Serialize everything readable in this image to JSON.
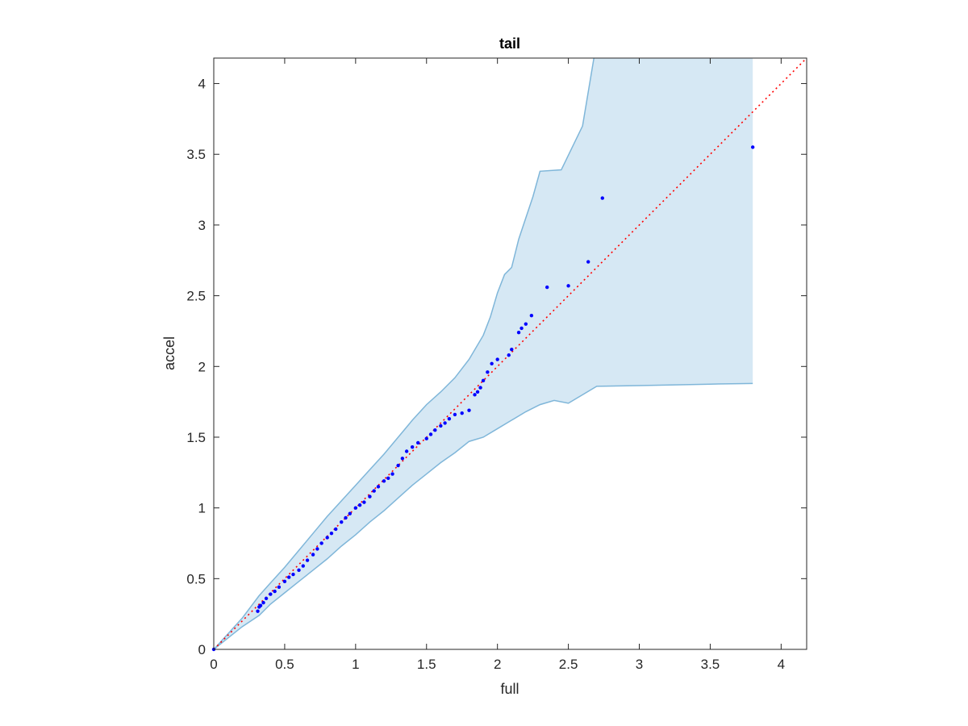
{
  "chart_data": {
    "type": "scatter",
    "title": "tail",
    "xlabel": "full",
    "ylabel": "accel",
    "xlim": [
      0,
      4.18
    ],
    "ylim": [
      0,
      4.18
    ],
    "xticks": [
      0,
      0.5,
      1,
      1.5,
      2,
      2.5,
      3,
      3.5,
      4
    ],
    "yticks": [
      0,
      0.5,
      1,
      1.5,
      2,
      2.5,
      3,
      3.5,
      4
    ],
    "xtick_labels": [
      "0",
      "0.5",
      "1",
      "1.5",
      "2",
      "2.5",
      "3",
      "3.5",
      "4"
    ],
    "ytick_labels": [
      "0",
      "0.5",
      "1",
      "1.5",
      "2",
      "2.5",
      "3",
      "3.5",
      "4"
    ],
    "grid": false,
    "colors": {
      "points": "#0000ff",
      "reference_line": "#ff0000",
      "band_fill": "#d6e8f4",
      "band_edge": "#7fb6d9",
      "axes": "#262626"
    },
    "reference_line": {
      "style": "dotted",
      "from": [
        0,
        0
      ],
      "to": [
        4.18,
        4.18
      ]
    },
    "confidence_band": {
      "upper": [
        [
          0,
          0
        ],
        [
          0.1,
          0.11
        ],
        [
          0.2,
          0.22
        ],
        [
          0.32,
          0.38
        ],
        [
          0.4,
          0.47
        ],
        [
          0.5,
          0.58
        ],
        [
          0.6,
          0.7
        ],
        [
          0.7,
          0.82
        ],
        [
          0.8,
          0.94
        ],
        [
          0.9,
          1.05
        ],
        [
          1.0,
          1.16
        ],
        [
          1.1,
          1.27
        ],
        [
          1.2,
          1.38
        ],
        [
          1.3,
          1.5
        ],
        [
          1.4,
          1.62
        ],
        [
          1.5,
          1.73
        ],
        [
          1.6,
          1.82
        ],
        [
          1.7,
          1.92
        ],
        [
          1.8,
          2.05
        ],
        [
          1.9,
          2.22
        ],
        [
          1.95,
          2.35
        ],
        [
          2.0,
          2.52
        ],
        [
          2.05,
          2.65
        ],
        [
          2.1,
          2.7
        ],
        [
          2.15,
          2.9
        ],
        [
          2.2,
          3.05
        ],
        [
          2.25,
          3.2
        ],
        [
          2.3,
          3.38
        ],
        [
          2.45,
          3.39
        ],
        [
          2.6,
          3.7
        ],
        [
          2.68,
          4.18
        ]
      ],
      "lower": [
        [
          0,
          0
        ],
        [
          0.1,
          0.08
        ],
        [
          0.2,
          0.16
        ],
        [
          0.32,
          0.24
        ],
        [
          0.4,
          0.32
        ],
        [
          0.5,
          0.4
        ],
        [
          0.6,
          0.48
        ],
        [
          0.7,
          0.56
        ],
        [
          0.8,
          0.64
        ],
        [
          0.9,
          0.73
        ],
        [
          1.0,
          0.81
        ],
        [
          1.1,
          0.9
        ],
        [
          1.2,
          0.98
        ],
        [
          1.3,
          1.07
        ],
        [
          1.4,
          1.16
        ],
        [
          1.5,
          1.24
        ],
        [
          1.6,
          1.32
        ],
        [
          1.7,
          1.39
        ],
        [
          1.8,
          1.47
        ],
        [
          1.9,
          1.5
        ],
        [
          2.0,
          1.56
        ],
        [
          2.1,
          1.62
        ],
        [
          2.2,
          1.68
        ],
        [
          2.3,
          1.73
        ],
        [
          2.4,
          1.76
        ],
        [
          2.5,
          1.74
        ],
        [
          2.7,
          1.86
        ],
        [
          3.0,
          1.865
        ],
        [
          3.5,
          1.875
        ],
        [
          3.8,
          1.88
        ]
      ],
      "x_end": 3.8,
      "y_top": 4.18
    },
    "series": [
      {
        "points": [
          [
            0,
            0
          ],
          [
            0.31,
            0.27
          ],
          [
            0.32,
            0.3
          ],
          [
            0.33,
            0.31
          ],
          [
            0.35,
            0.33
          ],
          [
            0.37,
            0.36
          ],
          [
            0.4,
            0.39
          ],
          [
            0.43,
            0.41
          ],
          [
            0.46,
            0.44
          ],
          [
            0.5,
            0.48
          ],
          [
            0.53,
            0.51
          ],
          [
            0.56,
            0.53
          ],
          [
            0.6,
            0.56
          ],
          [
            0.63,
            0.59
          ],
          [
            0.66,
            0.63
          ],
          [
            0.7,
            0.67
          ],
          [
            0.73,
            0.71
          ],
          [
            0.76,
            0.75
          ],
          [
            0.8,
            0.79
          ],
          [
            0.83,
            0.82
          ],
          [
            0.86,
            0.85
          ],
          [
            0.9,
            0.9
          ],
          [
            0.93,
            0.93
          ],
          [
            0.96,
            0.96
          ],
          [
            1.0,
            1.0
          ],
          [
            1.03,
            1.02
          ],
          [
            1.06,
            1.04
          ],
          [
            1.1,
            1.08
          ],
          [
            1.13,
            1.12
          ],
          [
            1.16,
            1.15
          ],
          [
            1.2,
            1.19
          ],
          [
            1.23,
            1.21
          ],
          [
            1.26,
            1.24
          ],
          [
            1.3,
            1.3
          ],
          [
            1.33,
            1.35
          ],
          [
            1.36,
            1.4
          ],
          [
            1.4,
            1.43
          ],
          [
            1.44,
            1.46
          ],
          [
            1.5,
            1.49
          ],
          [
            1.53,
            1.52
          ],
          [
            1.56,
            1.55
          ],
          [
            1.6,
            1.58
          ],
          [
            1.63,
            1.6
          ],
          [
            1.66,
            1.63
          ],
          [
            1.7,
            1.66
          ],
          [
            1.75,
            1.67
          ],
          [
            1.8,
            1.69
          ],
          [
            1.84,
            1.8
          ],
          [
            1.86,
            1.82
          ],
          [
            1.88,
            1.85
          ],
          [
            1.9,
            1.9
          ],
          [
            1.93,
            1.96
          ],
          [
            1.96,
            2.02
          ],
          [
            2.0,
            2.05
          ],
          [
            2.08,
            2.08
          ],
          [
            2.1,
            2.12
          ],
          [
            2.15,
            2.24
          ],
          [
            2.17,
            2.27
          ],
          [
            2.2,
            2.3
          ],
          [
            2.24,
            2.36
          ],
          [
            2.35,
            2.56
          ],
          [
            2.5,
            2.57
          ],
          [
            2.64,
            2.74
          ],
          [
            2.74,
            3.19
          ],
          [
            3.8,
            3.55
          ]
        ]
      }
    ]
  }
}
